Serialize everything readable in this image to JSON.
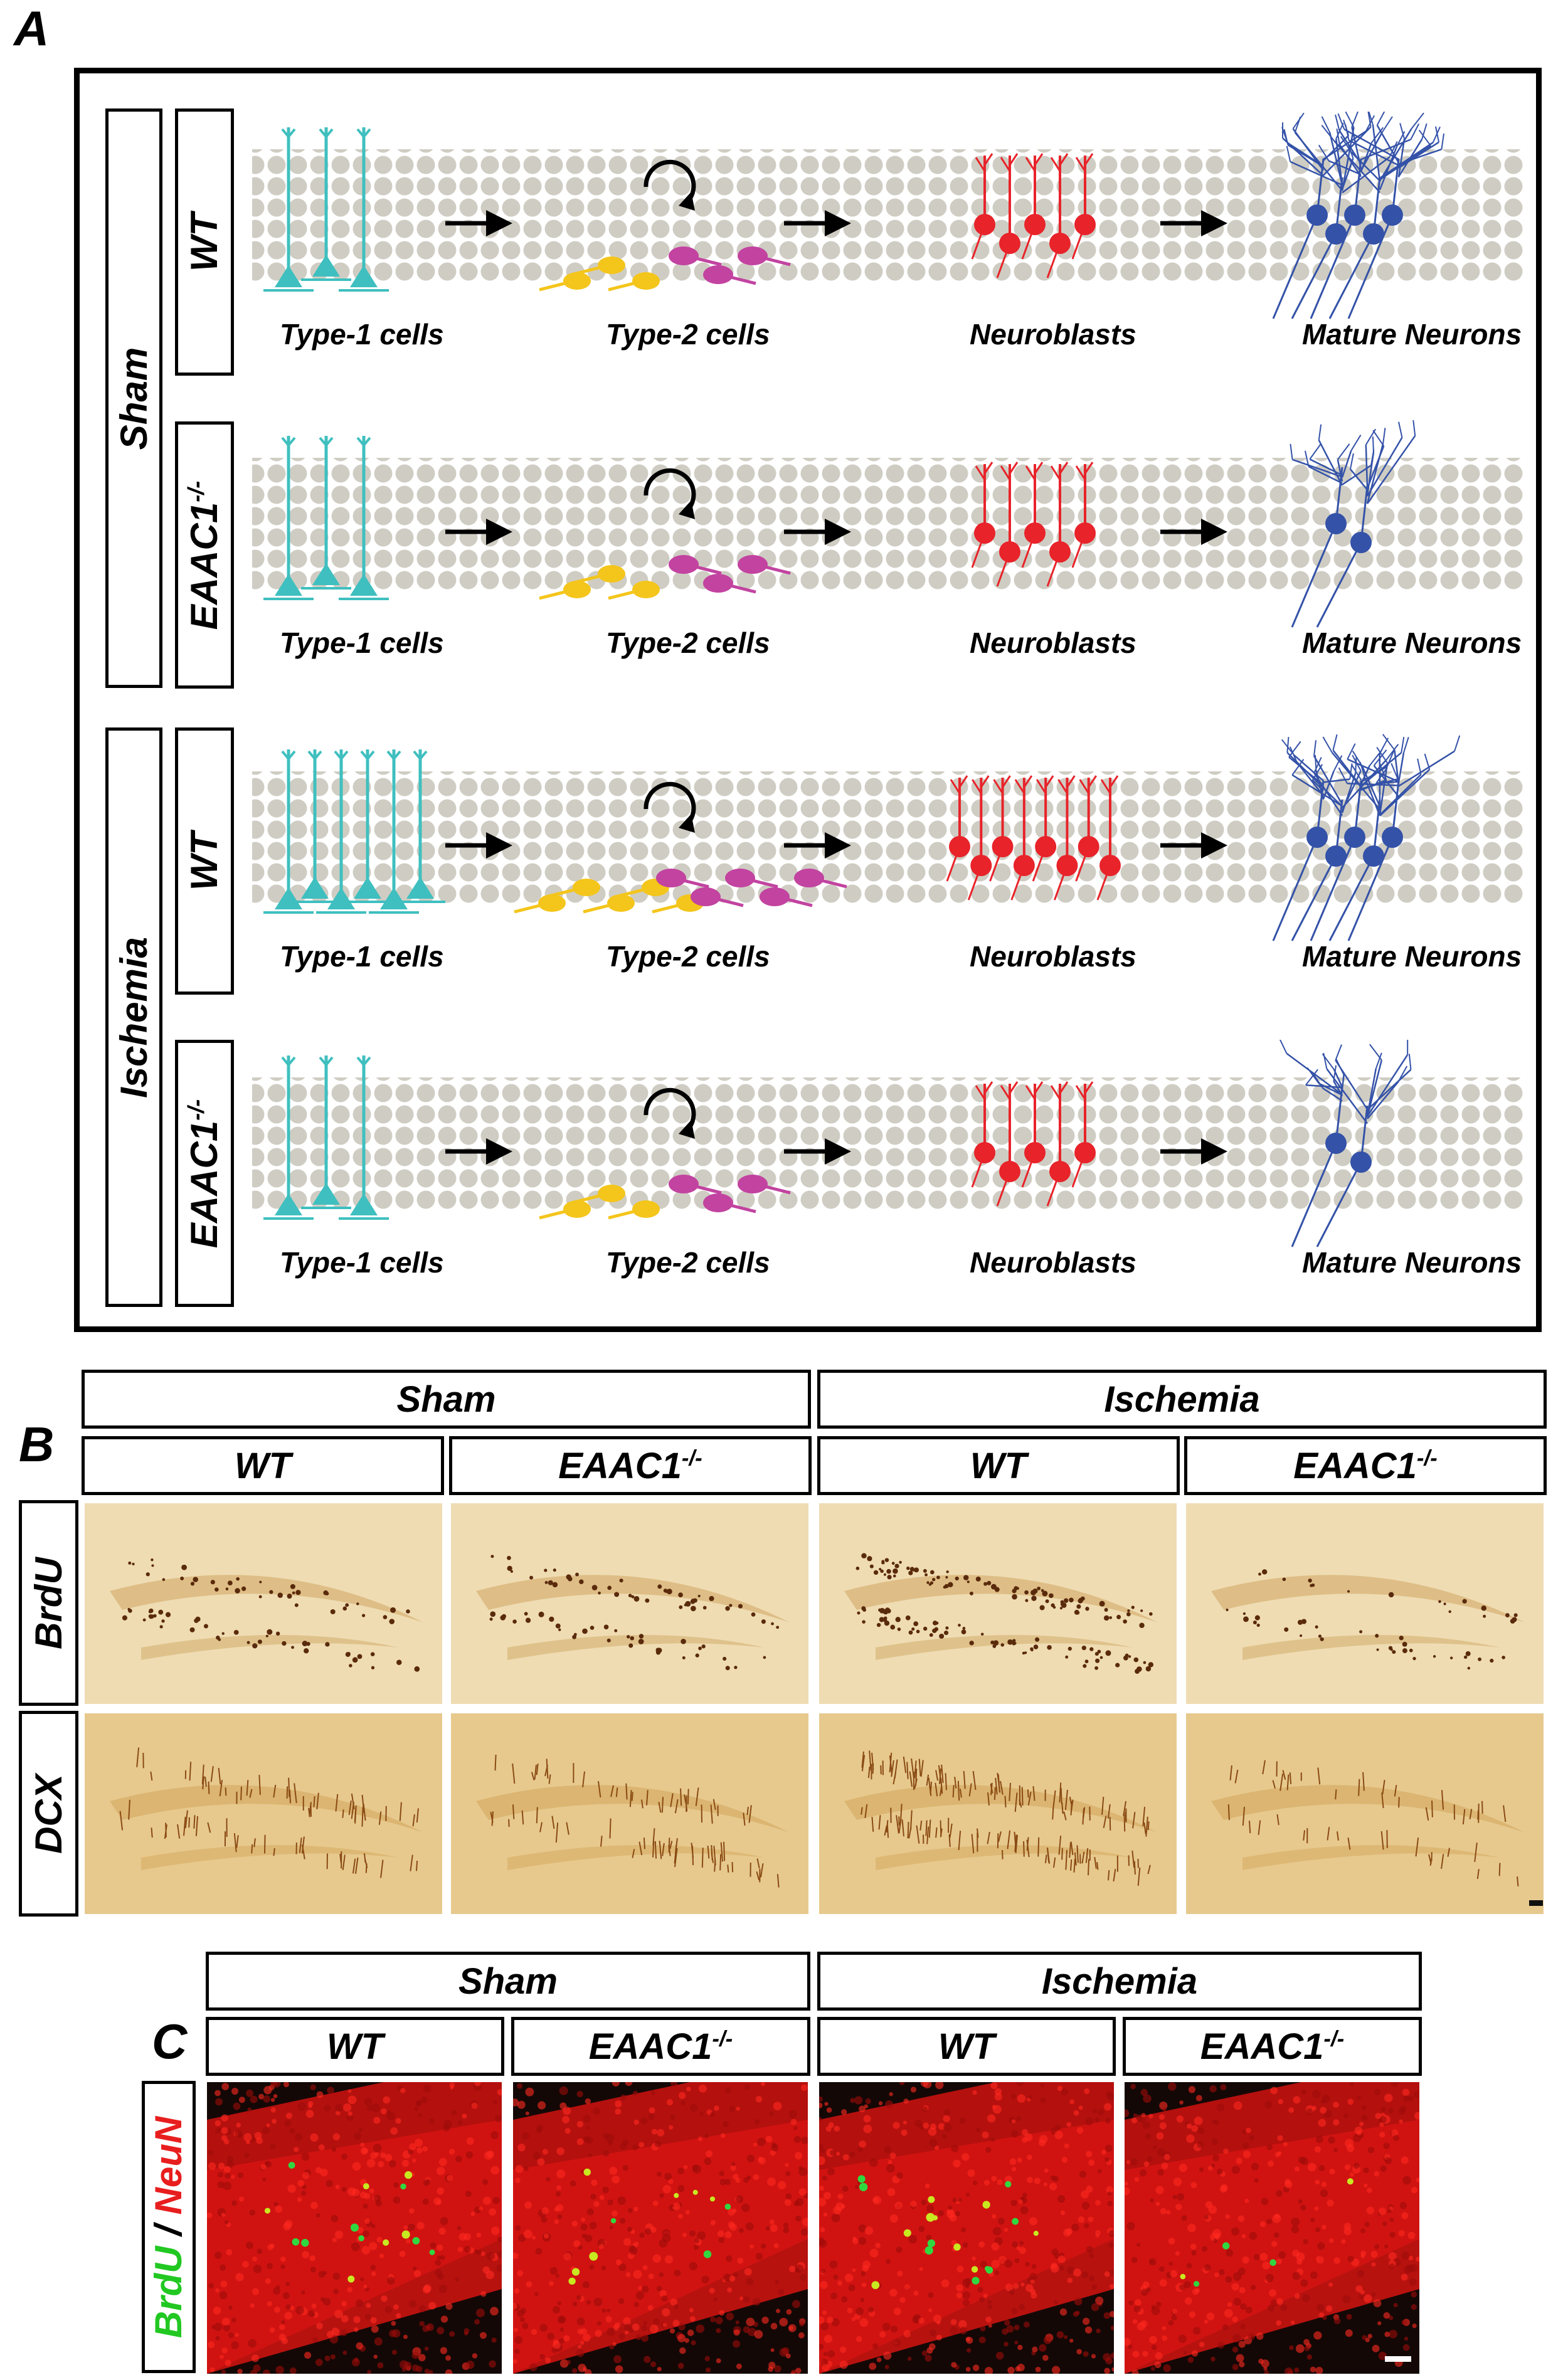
{
  "panels": {
    "a": "A",
    "b": "B",
    "c": "C"
  },
  "panel_a": {
    "group_labels": [
      "Sham",
      "Ischemia"
    ],
    "genotypes": [
      "WT",
      "EAAC1",
      "WT",
      "EAAC1"
    ],
    "genotype_sup": "-/-",
    "stage_labels": [
      "Type-1 cells",
      "Type-2 cells",
      "Neuroblasts",
      "Mature Neurons"
    ],
    "colors": {
      "type1": "#3fbfbf",
      "type2a": "#f4c51b",
      "type2b": "#c243a0",
      "neuroblast": "#e8232a",
      "mature": "#3452a8",
      "cell_bg": "#cfcdc3"
    }
  },
  "panel_b": {
    "conditions": [
      "Sham",
      "Ischemia"
    ],
    "genotypes": [
      "WT",
      "EAAC1",
      "WT",
      "EAAC1"
    ],
    "genotype_sup": "-/-",
    "stains": [
      "BrdU",
      "DCX"
    ]
  },
  "panel_c": {
    "conditions": [
      "Sham",
      "Ischemia"
    ],
    "genotypes": [
      "WT",
      "EAAC1",
      "WT",
      "EAAC1"
    ],
    "genotype_sup": "-/-",
    "stain_green": "BrdU",
    "stain_sep": " / ",
    "stain_red": "NeuN"
  }
}
